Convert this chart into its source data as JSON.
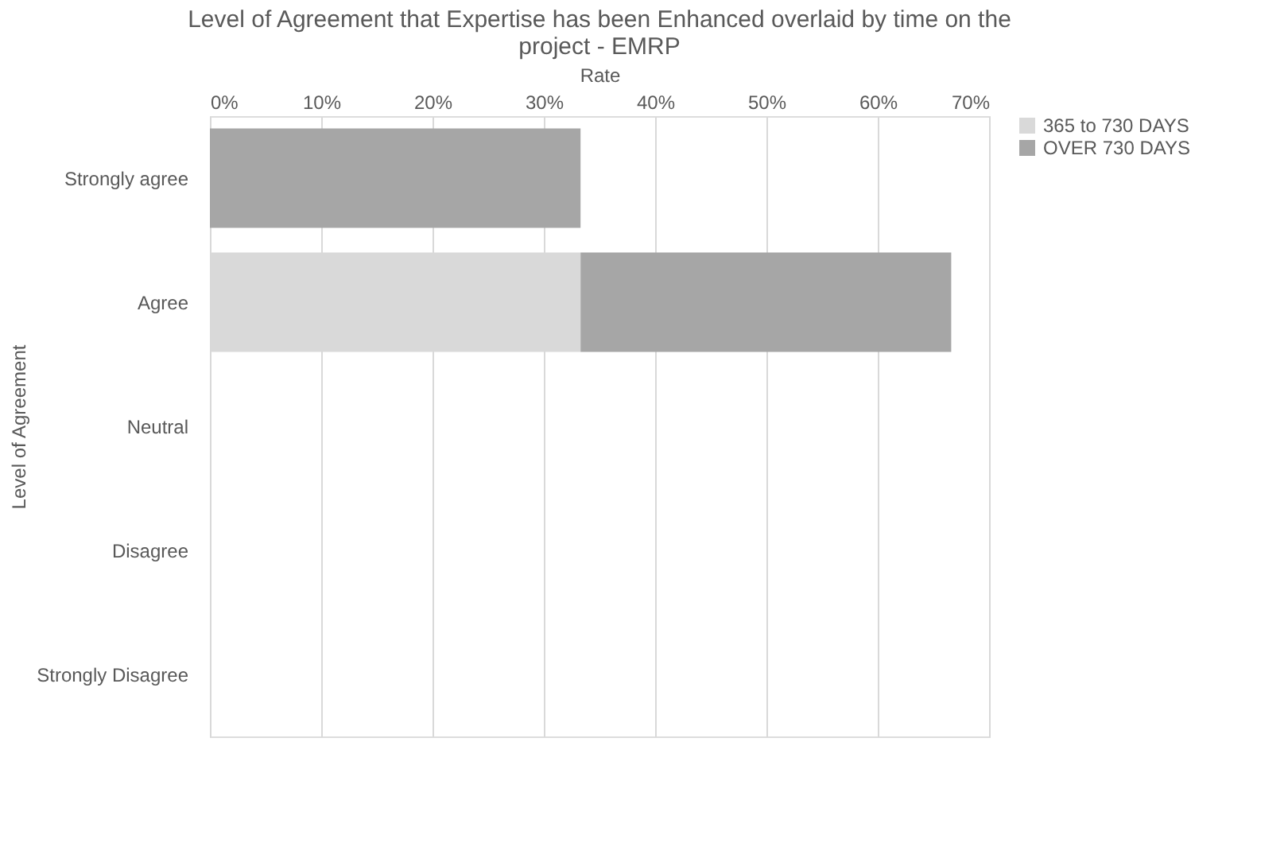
{
  "chart_data": {
    "type": "bar",
    "orientation": "horizontal",
    "stacked": true,
    "title": "Level of Agreement that  Expertise has been Enhanced overlaid by time on the project - EMRP",
    "xlabel": "Rate",
    "ylabel": "Level of Agreement",
    "categories": [
      "Strongly agree",
      "Agree",
      "Neutral",
      "Disagree",
      "Strongly Disagree"
    ],
    "series": [
      {
        "name": "365 to 730 DAYS",
        "color": "#d9d9d9",
        "values": [
          0,
          33.3,
          0,
          0,
          0
        ]
      },
      {
        "name": "OVER 730 DAYS",
        "color": "#a6a6a6",
        "values": [
          33.3,
          33.3,
          0,
          0,
          0
        ]
      }
    ],
    "xlim": [
      0,
      70
    ],
    "xticks": [
      {
        "value": 0,
        "label": "0%"
      },
      {
        "value": 10,
        "label": "10%"
      },
      {
        "value": 20,
        "label": "20%"
      },
      {
        "value": 30,
        "label": "30%"
      },
      {
        "value": 40,
        "label": "40%"
      },
      {
        "value": 50,
        "label": "50%"
      },
      {
        "value": 60,
        "label": "60%"
      },
      {
        "value": 70,
        "label": "70%"
      }
    ],
    "grid": "x",
    "legend": "right"
  }
}
